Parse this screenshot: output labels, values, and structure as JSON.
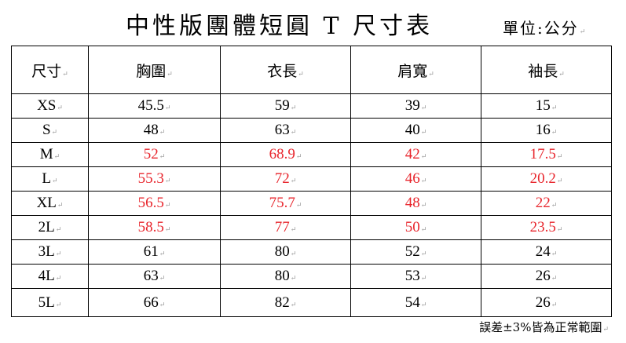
{
  "title": "中性版團體短圓 T 尺寸表",
  "unit_label": "單位:公分",
  "table": {
    "headers": [
      "尺寸",
      "胸圍",
      "衣長",
      "肩寬",
      "袖長"
    ],
    "rows": [
      {
        "size": "XS",
        "values": [
          "45.5",
          "59",
          "39",
          "15"
        ],
        "highlight": false
      },
      {
        "size": "S",
        "values": [
          "48",
          "63",
          "40",
          "16"
        ],
        "highlight": false
      },
      {
        "size": "M",
        "values": [
          "52",
          "68.9",
          "42",
          "17.5"
        ],
        "highlight": true
      },
      {
        "size": "L",
        "values": [
          "55.3",
          "72",
          "46",
          "20.2"
        ],
        "highlight": true
      },
      {
        "size": "XL",
        "values": [
          "56.5",
          "75.7",
          "48",
          "22"
        ],
        "highlight": true
      },
      {
        "size": "2L",
        "values": [
          "58.5",
          "77",
          "50",
          "23.5"
        ],
        "highlight": true
      },
      {
        "size": "3L",
        "values": [
          "61",
          "80",
          "52",
          "24"
        ],
        "highlight": false
      },
      {
        "size": "4L",
        "values": [
          "63",
          "80",
          "53",
          "26"
        ],
        "highlight": false
      },
      {
        "size": "5L",
        "values": [
          "66",
          "82",
          "54",
          "26"
        ],
        "highlight": false
      }
    ]
  },
  "footnote": "誤差±3%皆為正常範圍",
  "colors": {
    "highlight": "#e8262d",
    "text": "#000000"
  }
}
